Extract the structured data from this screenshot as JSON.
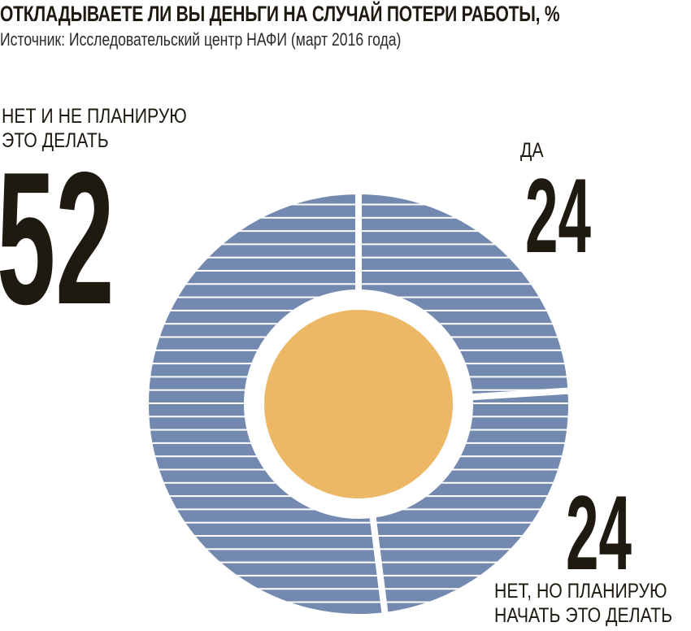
{
  "title": "ОТКЛАДЫВАЕТЕ ЛИ ВЫ ДЕНЬГИ НА СЛУЧАЙ ПОТЕРИ РАБОТЫ, %",
  "subtitle": "Источник: Исследовательский центр НАФИ (март 2016 года)",
  "chart_data": {
    "type": "pie",
    "style": "donut with striped slices",
    "title": "ОТКЛАДЫВАЕТЕ ЛИ ВЫ ДЕНЬГИ НА СЛУЧАЙ ПОТЕРИ РАБОТЫ, %",
    "categories": [
      "ДА",
      "НЕТ, НО ПЛАНИРУЮ НАЧАТЬ ЭТО ДЕЛАТЬ",
      "НЕТ И НЕ ПЛАНИРУЮ ЭТО ДЕЛАТЬ"
    ],
    "values": [
      24,
      24,
      52
    ],
    "labels": {
      "yes": {
        "text": "ДА",
        "value": "24"
      },
      "planning": {
        "line1": "НЕТ, НО ПЛАНИРУЮ",
        "line2": "НАЧАТЬ ЭТО ДЕЛАТЬ",
        "value": "24"
      },
      "no": {
        "line1": "НЕТ И НЕ ПЛАНИРУЮ",
        "line2": "ЭТО ДЕЛАТЬ",
        "value": "52"
      }
    },
    "colors": {
      "slice": "#7489b0",
      "stripe": "#ffffff",
      "center": "#ecb866",
      "text": "#1f1a10"
    }
  }
}
